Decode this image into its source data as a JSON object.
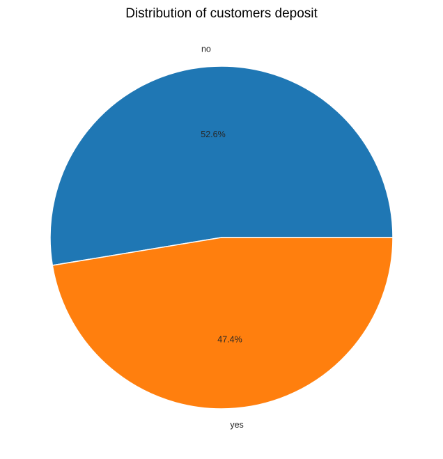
{
  "chart_data": {
    "type": "pie",
    "title": "Distribution of customers deposit",
    "slices": [
      {
        "label": "no",
        "value": 52.6,
        "pct_label": "52.6%",
        "color": "#1f77b4"
      },
      {
        "label": "yes",
        "value": 47.4,
        "pct_label": "47.4%",
        "color": "#ff7f0e"
      }
    ],
    "start_angle_deg": 0,
    "direction": "counterclockwise",
    "edge_color": "#ffffff"
  }
}
